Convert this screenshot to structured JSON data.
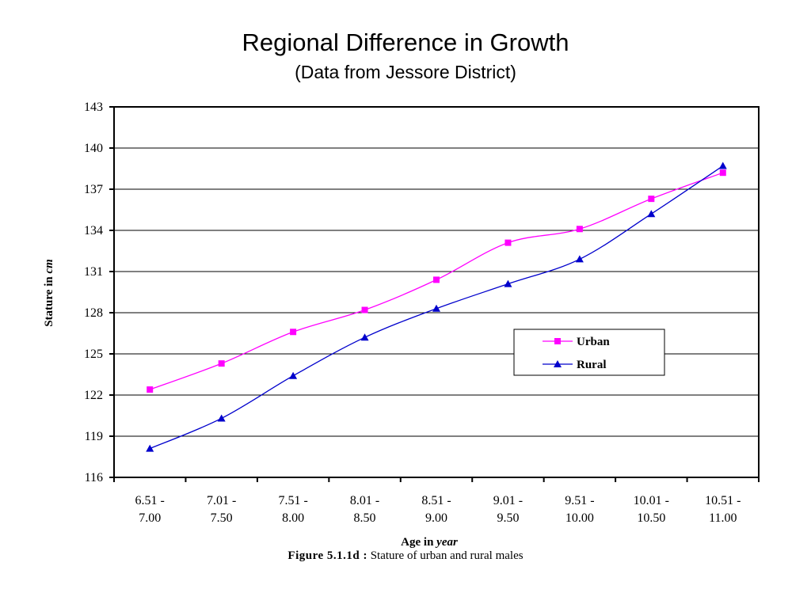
{
  "header": {
    "title": "Regional Difference in Growth",
    "subtitle": "(Data from Jessore District)"
  },
  "caption": {
    "label": "Figure  5.1.1d :",
    "text": " Stature of urban and rural males"
  },
  "chart_data": {
    "type": "line",
    "xlabel": {
      "main": "Age in ",
      "italic": "year"
    },
    "ylabel": {
      "main": "Stature in ",
      "italic": "cm"
    },
    "ylim": [
      116,
      143
    ],
    "yticks": [
      116,
      119,
      122,
      125,
      128,
      131,
      134,
      137,
      140,
      143
    ],
    "grid": true,
    "legend_position": "right-middle",
    "categories": [
      [
        "6.51 -",
        "7.00"
      ],
      [
        "7.01 -",
        "7.50"
      ],
      [
        "7.51 -",
        "8.00"
      ],
      [
        "8.01 -",
        "8.50"
      ],
      [
        "8.51 -",
        "9.00"
      ],
      [
        "9.01 -",
        "9.50"
      ],
      [
        "9.51 -",
        "10.00"
      ],
      [
        "10.01 -",
        "10.50"
      ],
      [
        "10.51 -",
        "11.00"
      ]
    ],
    "series": [
      {
        "name": "Urban",
        "color": "#ff00ff",
        "marker": "square",
        "values": [
          122.4,
          124.3,
          126.6,
          128.2,
          130.4,
          133.1,
          134.1,
          136.3,
          138.2
        ]
      },
      {
        "name": "Rural",
        "color": "#0000cc",
        "marker": "triangle",
        "values": [
          118.1,
          120.3,
          123.4,
          126.2,
          128.3,
          130.1,
          131.9,
          135.2,
          138.7
        ]
      }
    ]
  }
}
